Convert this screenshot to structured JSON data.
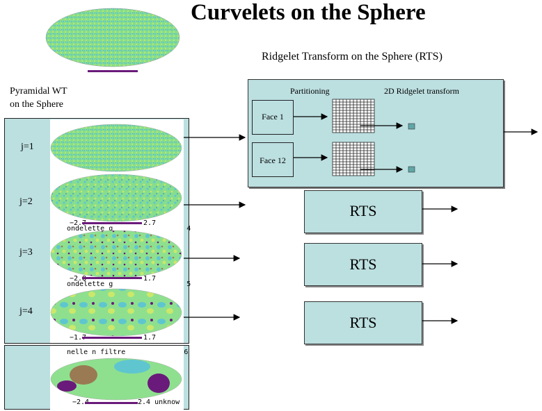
{
  "title": "Curvelets on the Sphere",
  "rts_heading": "Ridgelet Transform on the Sphere (RTS)",
  "pwt_heading_line1": "Pyramidal WT",
  "pwt_heading_line2": "on the Sphere",
  "scales": [
    {
      "label": "j=1"
    },
    {
      "label": "j=2",
      "under": "ondelette  g",
      "idx": "4"
    },
    {
      "label": "j=3",
      "under": "ondelette  g",
      "idx": "5"
    },
    {
      "label": "j=4"
    }
  ],
  "last_map_caption": "nelle  n  filtre",
  "last_map_idx": "6",
  "colorbars": [
    {
      "min": "−2.7",
      "max": "2.7"
    },
    {
      "min": "−2.8",
      "max": "1.7"
    },
    {
      "min": "−1.7",
      "max": "1.7"
    },
    {
      "min": "−2.4",
      "max": "2.4 unknow"
    }
  ],
  "rts_box": {
    "partitioning_label": "Partitioning",
    "ridgelet_label": "2D Ridgelet transform",
    "face1_label": "Face 1",
    "face12_label": "Face 12"
  },
  "rts_block_label": "RTS",
  "colors": {
    "panel": "#bcdfe0",
    "map_green": "#7fdc8a",
    "map_cyan": "#6fcfd8",
    "map_purple": "#6a1a7a",
    "map_brown": "#9a7a52"
  }
}
